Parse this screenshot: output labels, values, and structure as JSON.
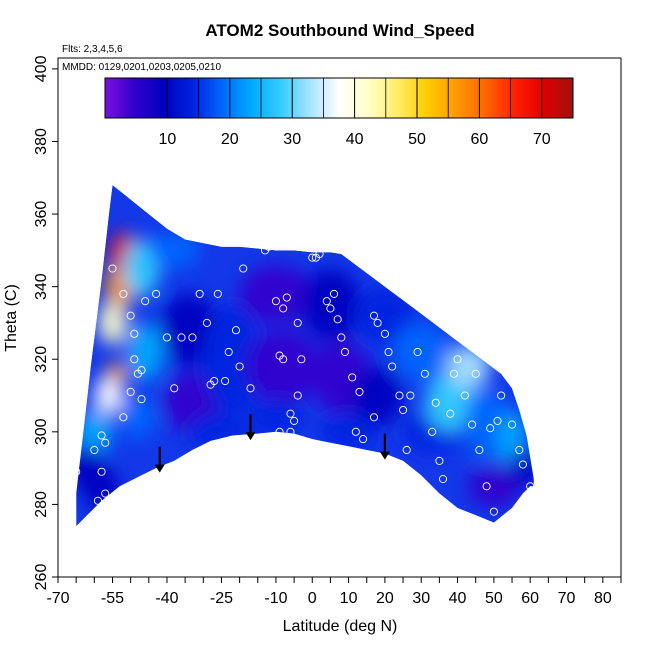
{
  "chart_data": {
    "type": "heatmap",
    "title": "ATOM2 Southbound Wind_Speed",
    "flights_label": "Flts: 2,3,4,5,6",
    "dates_label": "MMDD: 0129,0201,0203,0205,0210",
    "xlabel": "Latitude (deg N)",
    "ylabel": "Theta (C)",
    "xlim": [
      -70,
      85
    ],
    "ylim": [
      260,
      403
    ],
    "x_ticks": [
      -70,
      -55,
      -40,
      -25,
      -10,
      0,
      10,
      20,
      30,
      40,
      50,
      60,
      70,
      80
    ],
    "y_ticks": [
      260,
      280,
      300,
      320,
      340,
      360,
      380,
      400
    ],
    "colorbar": {
      "min": 0,
      "max": 75,
      "tick_values": [
        10,
        20,
        30,
        40,
        50,
        60,
        70
      ],
      "colors": [
        "#7a10e0",
        "#3300cc",
        "#0000c0",
        "#0022e0",
        "#0066ff",
        "#00aaff",
        "#33ccff",
        "#a8e2ff",
        "#ffffff",
        "#ffffc8",
        "#ffee66",
        "#ffcc00",
        "#ff9900",
        "#ff6600",
        "#ff2000",
        "#e00000",
        "#a01010"
      ]
    },
    "arrow_latitudes": [
      -42,
      -17,
      20
    ],
    "surface_outline": [
      [
        -65,
        274
      ],
      [
        -62,
        277
      ],
      [
        -58,
        281
      ],
      [
        -53,
        285
      ],
      [
        -47,
        288
      ],
      [
        -43,
        290
      ],
      [
        -38,
        292
      ],
      [
        -33,
        295
      ],
      [
        -28,
        297.5
      ],
      [
        -22,
        299
      ],
      [
        -15,
        299.5
      ],
      [
        -10,
        300
      ],
      [
        -5,
        299.5
      ],
      [
        0,
        298
      ],
      [
        5,
        297
      ],
      [
        10,
        296
      ],
      [
        15,
        295
      ],
      [
        20,
        294
      ],
      [
        25,
        292
      ],
      [
        30,
        288
      ],
      [
        35,
        283
      ],
      [
        40,
        279
      ],
      [
        45,
        277
      ],
      [
        50,
        275
      ],
      [
        55,
        279
      ],
      [
        58,
        283
      ],
      [
        60,
        285
      ]
    ],
    "top_outline": [
      [
        -65,
        275
      ],
      [
        -65,
        283
      ],
      [
        -63,
        300
      ],
      [
        -61,
        318
      ],
      [
        -58,
        342
      ],
      [
        -56,
        360
      ],
      [
        -55,
        368
      ],
      [
        -50,
        364
      ],
      [
        -45,
        360
      ],
      [
        -40,
        356
      ],
      [
        -35,
        353
      ],
      [
        -30,
        352
      ],
      [
        -25,
        351
      ],
      [
        -20,
        351
      ],
      [
        -15,
        350.5
      ],
      [
        -10,
        350
      ],
      [
        -5,
        350
      ],
      [
        0,
        349.5
      ],
      [
        5,
        349.5
      ],
      [
        8,
        349
      ],
      [
        12,
        346
      ],
      [
        16,
        343
      ],
      [
        20,
        340
      ],
      [
        24,
        337
      ],
      [
        28,
        334
      ],
      [
        32,
        331
      ],
      [
        36,
        328
      ],
      [
        40,
        325
      ],
      [
        44,
        322
      ],
      [
        48,
        319
      ],
      [
        52,
        316
      ],
      [
        55,
        312
      ],
      [
        57,
        306
      ],
      [
        59,
        299
      ],
      [
        60,
        293
      ],
      [
        61,
        287
      ],
      [
        61,
        285
      ]
    ],
    "blobs": [
      {
        "x": -52,
        "y": 349,
        "v": 70,
        "rx": 4,
        "ry": 6
      },
      {
        "x": -53,
        "y": 340,
        "v": 54,
        "rx": 4,
        "ry": 6
      },
      {
        "x": -55,
        "y": 330,
        "v": 44,
        "rx": 4,
        "ry": 6
      },
      {
        "x": -54,
        "y": 316,
        "v": 55,
        "rx": 3,
        "ry": 3
      },
      {
        "x": -56,
        "y": 310,
        "v": 36,
        "rx": 4,
        "ry": 5
      },
      {
        "x": -60,
        "y": 300,
        "v": 24,
        "rx": 5,
        "ry": 6
      },
      {
        "x": -47,
        "y": 345,
        "v": 28,
        "rx": 5,
        "ry": 8
      },
      {
        "x": -46,
        "y": 322,
        "v": 22,
        "rx": 5,
        "ry": 8
      },
      {
        "x": -48,
        "y": 304,
        "v": 18,
        "rx": 5,
        "ry": 6
      },
      {
        "x": -62,
        "y": 290,
        "v": 10,
        "rx": 5,
        "ry": 6
      },
      {
        "x": -58,
        "y": 284,
        "v": 8,
        "rx": 5,
        "ry": 6
      },
      {
        "x": -38,
        "y": 350,
        "v": 20,
        "rx": 7,
        "ry": 5
      },
      {
        "x": -34,
        "y": 328,
        "v": 9,
        "rx": 8,
        "ry": 10
      },
      {
        "x": -33,
        "y": 308,
        "v": 7,
        "rx": 8,
        "ry": 8
      },
      {
        "x": -22,
        "y": 320,
        "v": 12,
        "rx": 8,
        "ry": 15
      },
      {
        "x": -26,
        "y": 300,
        "v": 16,
        "rx": 8,
        "ry": 5
      },
      {
        "x": -10,
        "y": 338,
        "v": 4,
        "rx": 10,
        "ry": 8
      },
      {
        "x": -8,
        "y": 318,
        "v": 7,
        "rx": 10,
        "ry": 10
      },
      {
        "x": -10,
        "y": 304,
        "v": 14,
        "rx": 8,
        "ry": 5
      },
      {
        "x": 5,
        "y": 335,
        "v": 8,
        "rx": 8,
        "ry": 10
      },
      {
        "x": 8,
        "y": 315,
        "v": 5,
        "rx": 8,
        "ry": 10
      },
      {
        "x": 10,
        "y": 300,
        "v": 12,
        "rx": 8,
        "ry": 5
      },
      {
        "x": 18,
        "y": 310,
        "v": 10,
        "rx": 7,
        "ry": 8
      },
      {
        "x": 20,
        "y": 332,
        "v": 14,
        "rx": 8,
        "ry": 8
      },
      {
        "x": 30,
        "y": 322,
        "v": 18,
        "rx": 8,
        "ry": 8
      },
      {
        "x": 33,
        "y": 300,
        "v": 14,
        "rx": 8,
        "ry": 6
      },
      {
        "x": 38,
        "y": 308,
        "v": 26,
        "rx": 7,
        "ry": 8
      },
      {
        "x": 43,
        "y": 318,
        "v": 33,
        "rx": 6,
        "ry": 6
      },
      {
        "x": 48,
        "y": 302,
        "v": 20,
        "rx": 6,
        "ry": 10
      },
      {
        "x": 55,
        "y": 298,
        "v": 24,
        "rx": 4,
        "ry": 8
      },
      {
        "x": 50,
        "y": 285,
        "v": 7,
        "rx": 7,
        "ry": 6
      },
      {
        "x": 58,
        "y": 290,
        "v": 9,
        "rx": 4,
        "ry": 5
      }
    ],
    "observations": [
      [
        -65,
        289
      ],
      [
        -60,
        295
      ],
      [
        -58,
        299
      ],
      [
        -57,
        297
      ],
      [
        -59,
        281
      ],
      [
        -57,
        283
      ],
      [
        -58,
        289
      ],
      [
        -55,
        345
      ],
      [
        -52,
        338
      ],
      [
        -50,
        332
      ],
      [
        -49,
        327
      ],
      [
        -49,
        320
      ],
      [
        -48,
        316
      ],
      [
        -50,
        311
      ],
      [
        -52,
        304
      ],
      [
        -47,
        309
      ],
      [
        -46,
        336
      ],
      [
        -47,
        317
      ],
      [
        -43,
        338
      ],
      [
        -40,
        326
      ],
      [
        -38,
        312
      ],
      [
        -36,
        326
      ],
      [
        -33,
        326
      ],
      [
        -31,
        338
      ],
      [
        -29,
        330
      ],
      [
        -26,
        338
      ],
      [
        -24,
        314
      ],
      [
        -23,
        322
      ],
      [
        -21,
        328
      ],
      [
        -20,
        318
      ],
      [
        -27,
        314
      ],
      [
        -28,
        313
      ],
      [
        -19,
        345
      ],
      [
        -17,
        312
      ],
      [
        -13,
        350
      ],
      [
        -12,
        351
      ],
      [
        -9,
        321
      ],
      [
        -8,
        320
      ],
      [
        -7,
        337
      ],
      [
        -8,
        334
      ],
      [
        -6,
        305
      ],
      [
        -5,
        303
      ],
      [
        -6,
        300
      ],
      [
        -4,
        310
      ],
      [
        -3,
        320
      ],
      [
        0,
        348
      ],
      [
        1,
        348
      ],
      [
        2,
        349
      ],
      [
        4,
        336
      ],
      [
        6,
        338
      ],
      [
        5,
        334
      ],
      [
        7,
        331
      ],
      [
        8,
        326
      ],
      [
        9,
        322
      ],
      [
        11,
        315
      ],
      [
        12,
        300
      ],
      [
        13,
        311
      ],
      [
        14,
        298
      ],
      [
        17,
        332
      ],
      [
        18,
        330
      ],
      [
        20,
        327
      ],
      [
        21,
        322
      ],
      [
        22,
        318
      ],
      [
        24,
        310
      ],
      [
        25,
        306
      ],
      [
        26,
        295
      ],
      [
        27,
        310
      ],
      [
        29,
        322
      ],
      [
        31,
        316
      ],
      [
        33,
        300
      ],
      [
        34,
        308
      ],
      [
        35,
        292
      ],
      [
        36,
        287
      ],
      [
        38,
        305
      ],
      [
        39,
        316
      ],
      [
        40,
        320
      ],
      [
        42,
        310
      ],
      [
        44,
        302
      ],
      [
        46,
        295
      ],
      [
        48,
        285
      ],
      [
        50,
        278
      ],
      [
        52,
        310
      ],
      [
        54,
        320
      ],
      [
        55,
        302
      ],
      [
        57,
        295
      ],
      [
        58,
        291
      ],
      [
        60,
        285
      ],
      [
        -9,
        300
      ],
      [
        -10,
        336
      ],
      [
        -4,
        330
      ],
      [
        17,
        304
      ],
      [
        15,
        346
      ],
      [
        13,
        348
      ],
      [
        45,
        316
      ],
      [
        49,
        301
      ],
      [
        51,
        303
      ]
    ]
  }
}
